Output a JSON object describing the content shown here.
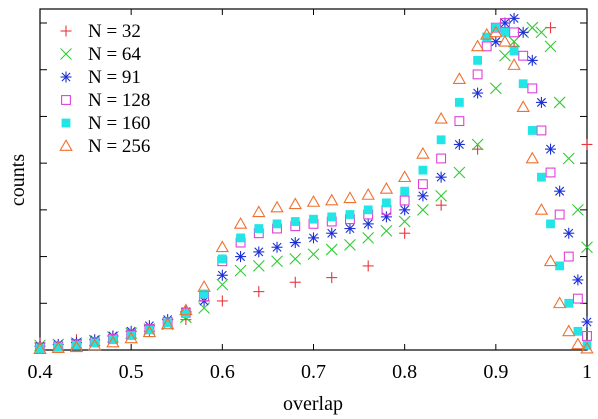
{
  "chart_data": {
    "type": "scatter",
    "xlabel": "overlap",
    "ylabel": "counts",
    "xlim": [
      0.4,
      1.0
    ],
    "ylim": [
      0,
      7.3
    ],
    "x_ticks": [
      "0.4",
      "0.5",
      "0.6",
      "0.7",
      "0.8",
      "0.9",
      "1"
    ],
    "y_tick_values": [
      1,
      2,
      3,
      4,
      5,
      6,
      7
    ],
    "y_tick_labels_shown": false,
    "grid": false,
    "legend_position": "top-left",
    "series": [
      {
        "name": "N = 32",
        "marker": "plus",
        "color": "#e8383d",
        "points": [
          [
            0.4,
            0.15
          ],
          [
            0.44,
            0.22
          ],
          [
            0.48,
            0.3
          ],
          [
            0.52,
            0.4
          ],
          [
            0.56,
            0.65
          ],
          [
            0.6,
            1.05
          ],
          [
            0.64,
            1.25
          ],
          [
            0.68,
            1.45
          ],
          [
            0.72,
            1.55
          ],
          [
            0.76,
            1.8
          ],
          [
            0.8,
            2.5
          ],
          [
            0.84,
            3.1
          ],
          [
            0.88,
            4.3
          ],
          [
            0.92,
            6.5
          ],
          [
            0.96,
            6.9
          ],
          [
            1.0,
            4.4
          ]
        ]
      },
      {
        "name": "N = 64",
        "marker": "cross",
        "color": "#2ecc32",
        "points": [
          [
            0.4,
            0.1
          ],
          [
            0.42,
            0.12
          ],
          [
            0.44,
            0.15
          ],
          [
            0.46,
            0.2
          ],
          [
            0.48,
            0.28
          ],
          [
            0.5,
            0.36
          ],
          [
            0.52,
            0.45
          ],
          [
            0.54,
            0.55
          ],
          [
            0.56,
            0.7
          ],
          [
            0.58,
            0.9
          ],
          [
            0.6,
            1.4
          ],
          [
            0.62,
            1.7
          ],
          [
            0.64,
            1.8
          ],
          [
            0.66,
            1.9
          ],
          [
            0.68,
            1.95
          ],
          [
            0.7,
            2.05
          ],
          [
            0.72,
            2.15
          ],
          [
            0.74,
            2.25
          ],
          [
            0.76,
            2.4
          ],
          [
            0.78,
            2.55
          ],
          [
            0.8,
            2.75
          ],
          [
            0.82,
            3.0
          ],
          [
            0.84,
            3.3
          ],
          [
            0.86,
            3.8
          ],
          [
            0.88,
            4.4
          ],
          [
            0.9,
            5.6
          ],
          [
            0.91,
            6.3
          ],
          [
            0.92,
            6.6
          ],
          [
            0.93,
            6.8
          ],
          [
            0.94,
            6.9
          ],
          [
            0.95,
            6.8
          ],
          [
            0.96,
            6.5
          ],
          [
            0.97,
            5.3
          ],
          [
            0.98,
            4.1
          ],
          [
            0.99,
            3.0
          ],
          [
            1.0,
            2.2
          ]
        ]
      },
      {
        "name": "N = 91",
        "marker": "asterisk",
        "color": "#1b2fd6",
        "points": [
          [
            0.4,
            0.08
          ],
          [
            0.42,
            0.12
          ],
          [
            0.44,
            0.16
          ],
          [
            0.46,
            0.22
          ],
          [
            0.48,
            0.3
          ],
          [
            0.5,
            0.4
          ],
          [
            0.52,
            0.52
          ],
          [
            0.54,
            0.65
          ],
          [
            0.56,
            0.82
          ],
          [
            0.58,
            1.05
          ],
          [
            0.6,
            1.6
          ],
          [
            0.62,
            2.0
          ],
          [
            0.64,
            2.1
          ],
          [
            0.66,
            2.2
          ],
          [
            0.68,
            2.3
          ],
          [
            0.7,
            2.4
          ],
          [
            0.72,
            2.5
          ],
          [
            0.74,
            2.6
          ],
          [
            0.76,
            2.7
          ],
          [
            0.78,
            2.85
          ],
          [
            0.8,
            3.0
          ],
          [
            0.82,
            3.3
          ],
          [
            0.84,
            3.7
          ],
          [
            0.86,
            4.4
          ],
          [
            0.88,
            5.5
          ],
          [
            0.9,
            6.6
          ],
          [
            0.91,
            7.0
          ],
          [
            0.92,
            7.1
          ],
          [
            0.93,
            6.8
          ],
          [
            0.94,
            6.2
          ],
          [
            0.95,
            5.3
          ],
          [
            0.96,
            4.3
          ],
          [
            0.97,
            3.4
          ],
          [
            0.98,
            2.5
          ],
          [
            0.99,
            1.5
          ],
          [
            1.0,
            0.6
          ]
        ]
      },
      {
        "name": "N = 128",
        "marker": "square-open",
        "color": "#e040d8",
        "points": [
          [
            0.4,
            0.05
          ],
          [
            0.42,
            0.08
          ],
          [
            0.44,
            0.12
          ],
          [
            0.46,
            0.17
          ],
          [
            0.48,
            0.24
          ],
          [
            0.5,
            0.33
          ],
          [
            0.52,
            0.45
          ],
          [
            0.54,
            0.6
          ],
          [
            0.56,
            0.8
          ],
          [
            0.58,
            1.15
          ],
          [
            0.6,
            1.9
          ],
          [
            0.62,
            2.3
          ],
          [
            0.64,
            2.5
          ],
          [
            0.66,
            2.6
          ],
          [
            0.68,
            2.65
          ],
          [
            0.7,
            2.7
          ],
          [
            0.72,
            2.75
          ],
          [
            0.74,
            2.8
          ],
          [
            0.76,
            2.9
          ],
          [
            0.78,
            3.0
          ],
          [
            0.8,
            3.2
          ],
          [
            0.82,
            3.55
          ],
          [
            0.84,
            4.1
          ],
          [
            0.86,
            4.9
          ],
          [
            0.88,
            5.9
          ],
          [
            0.89,
            6.5
          ],
          [
            0.9,
            6.9
          ],
          [
            0.91,
            7.0
          ],
          [
            0.92,
            6.8
          ],
          [
            0.93,
            6.3
          ],
          [
            0.94,
            5.6
          ],
          [
            0.95,
            4.7
          ],
          [
            0.96,
            3.8
          ],
          [
            0.97,
            2.9
          ],
          [
            0.98,
            2.0
          ],
          [
            0.99,
            1.1
          ],
          [
            1.0,
            0.3
          ]
        ]
      },
      {
        "name": "N = 160",
        "marker": "square-filled",
        "color": "#22e5e5",
        "points": [
          [
            0.4,
            0.03
          ],
          [
            0.42,
            0.06
          ],
          [
            0.44,
            0.1
          ],
          [
            0.46,
            0.15
          ],
          [
            0.48,
            0.22
          ],
          [
            0.5,
            0.31
          ],
          [
            0.52,
            0.43
          ],
          [
            0.54,
            0.58
          ],
          [
            0.56,
            0.78
          ],
          [
            0.58,
            1.2
          ],
          [
            0.6,
            1.95
          ],
          [
            0.62,
            2.4
          ],
          [
            0.64,
            2.6
          ],
          [
            0.66,
            2.7
          ],
          [
            0.68,
            2.75
          ],
          [
            0.7,
            2.8
          ],
          [
            0.72,
            2.85
          ],
          [
            0.74,
            2.9
          ],
          [
            0.76,
            3.0
          ],
          [
            0.78,
            3.15
          ],
          [
            0.8,
            3.4
          ],
          [
            0.82,
            3.85
          ],
          [
            0.84,
            4.5
          ],
          [
            0.86,
            5.3
          ],
          [
            0.88,
            6.2
          ],
          [
            0.89,
            6.7
          ],
          [
            0.9,
            6.9
          ],
          [
            0.91,
            6.8
          ],
          [
            0.92,
            6.4
          ],
          [
            0.93,
            5.7
          ],
          [
            0.94,
            4.7
          ],
          [
            0.95,
            3.7
          ],
          [
            0.96,
            2.7
          ],
          [
            0.97,
            1.8
          ],
          [
            0.98,
            1.0
          ],
          [
            0.99,
            0.4
          ],
          [
            1.0,
            0.1
          ]
        ]
      },
      {
        "name": "N = 256",
        "marker": "triangle-open",
        "color": "#f07030",
        "points": [
          [
            0.4,
            0.02
          ],
          [
            0.42,
            0.04
          ],
          [
            0.44,
            0.06
          ],
          [
            0.46,
            0.1
          ],
          [
            0.48,
            0.16
          ],
          [
            0.5,
            0.25
          ],
          [
            0.52,
            0.38
          ],
          [
            0.54,
            0.55
          ],
          [
            0.56,
            0.85
          ],
          [
            0.58,
            1.35
          ],
          [
            0.6,
            2.2
          ],
          [
            0.62,
            2.7
          ],
          [
            0.64,
            2.95
          ],
          [
            0.66,
            3.05
          ],
          [
            0.68,
            3.12
          ],
          [
            0.7,
            3.17
          ],
          [
            0.72,
            3.2
          ],
          [
            0.74,
            3.25
          ],
          [
            0.76,
            3.32
          ],
          [
            0.78,
            3.45
          ],
          [
            0.8,
            3.7
          ],
          [
            0.82,
            4.2
          ],
          [
            0.84,
            4.95
          ],
          [
            0.86,
            5.8
          ],
          [
            0.88,
            6.5
          ],
          [
            0.89,
            6.75
          ],
          [
            0.9,
            6.8
          ],
          [
            0.91,
            6.6
          ],
          [
            0.92,
            6.1
          ],
          [
            0.93,
            5.2
          ],
          [
            0.94,
            4.1
          ],
          [
            0.95,
            3.0
          ],
          [
            0.96,
            1.9
          ],
          [
            0.97,
            1.0
          ],
          [
            0.98,
            0.4
          ],
          [
            0.99,
            0.12
          ],
          [
            1.0,
            0.03
          ]
        ]
      }
    ]
  }
}
